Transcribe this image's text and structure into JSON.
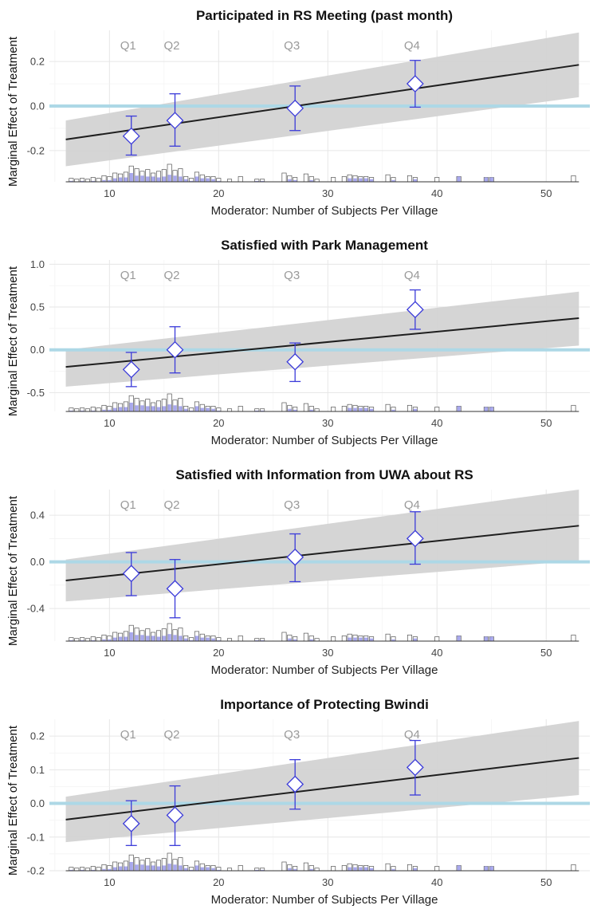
{
  "colors": {
    "band": "#d3d3d3",
    "line": "#1e1e1e",
    "zero_line": "#add8e6",
    "point": "#3b3bd9",
    "hist_treat": "#a8a8ee",
    "hist_outline": "#555555",
    "grid": "#ebebeb"
  },
  "chart_data": [
    {
      "type": "line",
      "title": "Participated in RS Meeting (past month)",
      "xlabel": "Moderator: Number of Subjects Per Village",
      "ylabel": "Marginal Effect of Treatment",
      "xlim": [
        6,
        53
      ],
      "xticks": [
        10,
        20,
        30,
        40,
        50
      ],
      "ylim": [
        -0.34,
        0.34
      ],
      "yticks": [
        -0.2,
        0.0,
        0.2
      ],
      "ytick_labels": [
        "-0.2",
        "0.0",
        "0.2"
      ],
      "grid": true,
      "zero_line": 0,
      "fit_line": {
        "x": [
          6,
          53
        ],
        "y": [
          -0.15,
          0.185
        ]
      },
      "ci_band": {
        "x": [
          6,
          53
        ],
        "lower": [
          -0.27,
          0.04
        ],
        "upper": [
          -0.065,
          0.33
        ]
      },
      "quartile_estimates": [
        {
          "label": "Q1",
          "x": 12,
          "y": -0.135,
          "lower": -0.22,
          "upper": -0.045
        },
        {
          "label": "Q2",
          "x": 16,
          "y": -0.065,
          "lower": -0.18,
          "upper": 0.055
        },
        {
          "label": "Q3",
          "x": 27,
          "y": -0.01,
          "lower": -0.11,
          "upper": 0.09
        },
        {
          "label": "Q4",
          "x": 38,
          "y": 0.1,
          "lower": -0.005,
          "upper": 0.205
        }
      ]
    },
    {
      "type": "line",
      "title": "Satisfied with Park Management",
      "xlabel": "Moderator: Number of Subjects Per Village",
      "ylabel": "Marginal Effect of Treatment",
      "xlim": [
        6,
        53
      ],
      "xticks": [
        10,
        20,
        30,
        40,
        50
      ],
      "ylim": [
        -0.72,
        1.05
      ],
      "yticks": [
        -0.5,
        0.0,
        0.5,
        1.0
      ],
      "ytick_labels": [
        "-0.5",
        "0.0",
        "0.5",
        "1.0"
      ],
      "grid": true,
      "zero_line": 0,
      "fit_line": {
        "x": [
          6,
          53
        ],
        "y": [
          -0.2,
          0.37
        ]
      },
      "ci_band": {
        "x": [
          6,
          53
        ],
        "lower": [
          -0.43,
          0.05
        ],
        "upper": [
          0.0,
          0.68
        ]
      },
      "quartile_estimates": [
        {
          "label": "Q1",
          "x": 12,
          "y": -0.23,
          "lower": -0.43,
          "upper": -0.03
        },
        {
          "label": "Q2",
          "x": 16,
          "y": 0.0,
          "lower": -0.27,
          "upper": 0.27
        },
        {
          "label": "Q3",
          "x": 27,
          "y": -0.14,
          "lower": -0.37,
          "upper": 0.08
        },
        {
          "label": "Q4",
          "x": 38,
          "y": 0.47,
          "lower": 0.24,
          "upper": 0.7
        }
      ]
    },
    {
      "type": "line",
      "title": "Satisfied with Information from UWA about RS",
      "xlabel": "Moderator: Number of Subjects Per Village",
      "ylabel": "Marginal Effect of Treatment",
      "xlim": [
        6,
        53
      ],
      "xticks": [
        10,
        20,
        30,
        40,
        50
      ],
      "ylim": [
        -0.68,
        0.62
      ],
      "yticks": [
        -0.4,
        0.0,
        0.4
      ],
      "ytick_labels": [
        "-0.4",
        "0.0",
        "0.4"
      ],
      "grid": true,
      "zero_line": 0,
      "fit_line": {
        "x": [
          6,
          53
        ],
        "y": [
          -0.16,
          0.31
        ]
      },
      "ci_band": {
        "x": [
          6,
          53
        ],
        "lower": [
          -0.34,
          0.01
        ],
        "upper": [
          0.02,
          0.62
        ]
      },
      "quartile_estimates": [
        {
          "label": "Q1",
          "x": 12,
          "y": -0.1,
          "lower": -0.29,
          "upper": 0.08
        },
        {
          "label": "Q2",
          "x": 16,
          "y": -0.23,
          "lower": -0.48,
          "upper": 0.02
        },
        {
          "label": "Q3",
          "x": 27,
          "y": 0.04,
          "lower": -0.17,
          "upper": 0.24
        },
        {
          "label": "Q4",
          "x": 38,
          "y": 0.2,
          "lower": -0.02,
          "upper": 0.43
        }
      ]
    },
    {
      "type": "line",
      "title": "Importance of Protecting Bwindi",
      "xlabel": "Moderator: Number of Subjects Per Village",
      "ylabel": "Marginal Effect of Treatment",
      "xlim": [
        6,
        53
      ],
      "xticks": [
        10,
        20,
        30,
        40,
        50
      ],
      "ylim": [
        -0.2,
        0.25
      ],
      "yticks": [
        -0.2,
        -0.1,
        0.0,
        0.1,
        0.2
      ],
      "ytick_labels": [
        "-0.2",
        "-0.1",
        "0.0",
        "0.1",
        "0.2"
      ],
      "grid": true,
      "zero_line": 0,
      "fit_line": {
        "x": [
          6,
          53
        ],
        "y": [
          -0.048,
          0.135
        ]
      },
      "ci_band": {
        "x": [
          6,
          53
        ],
        "lower": [
          -0.115,
          0.025
        ],
        "upper": [
          0.02,
          0.245
        ]
      },
      "quartile_estimates": [
        {
          "label": "Q1",
          "x": 12,
          "y": -0.06,
          "lower": -0.125,
          "upper": 0.008
        },
        {
          "label": "Q2",
          "x": 16,
          "y": -0.035,
          "lower": -0.125,
          "upper": 0.052
        },
        {
          "label": "Q3",
          "x": 27,
          "y": 0.057,
          "lower": -0.017,
          "upper": 0.13
        },
        {
          "label": "Q4",
          "x": 38,
          "y": 0.107,
          "lower": 0.025,
          "upper": 0.187
        }
      ]
    }
  ],
  "moderator_histogram": {
    "note": "same distribution drawn under each panel; heights relative (0-1)",
    "bins": [
      {
        "x": 6.5,
        "total": 0.2,
        "treated": 0.05
      },
      {
        "x": 7,
        "total": 0.15,
        "treated": 0.0
      },
      {
        "x": 7.5,
        "total": 0.2,
        "treated": 0.05
      },
      {
        "x": 8,
        "total": 0.15,
        "treated": 0.0
      },
      {
        "x": 8.5,
        "total": 0.25,
        "treated": 0.05
      },
      {
        "x": 9,
        "total": 0.2,
        "treated": 0.0
      },
      {
        "x": 9.5,
        "total": 0.35,
        "treated": 0.1
      },
      {
        "x": 10,
        "total": 0.3,
        "treated": 0.1
      },
      {
        "x": 10.5,
        "total": 0.5,
        "treated": 0.2
      },
      {
        "x": 11,
        "total": 0.45,
        "treated": 0.25
      },
      {
        "x": 11.5,
        "total": 0.55,
        "treated": 0.25
      },
      {
        "x": 12,
        "total": 0.9,
        "treated": 0.5
      },
      {
        "x": 12.5,
        "total": 0.75,
        "treated": 0.35
      },
      {
        "x": 13,
        "total": 0.6,
        "treated": 0.35
      },
      {
        "x": 13.5,
        "total": 0.7,
        "treated": 0.3
      },
      {
        "x": 14,
        "total": 0.5,
        "treated": 0.3
      },
      {
        "x": 14.5,
        "total": 0.6,
        "treated": 0.25
      },
      {
        "x": 15,
        "total": 0.7,
        "treated": 0.3
      },
      {
        "x": 15.5,
        "total": 1.0,
        "treated": 0.4
      },
      {
        "x": 16,
        "total": 0.65,
        "treated": 0.35
      },
      {
        "x": 16.5,
        "total": 0.75,
        "treated": 0.3
      },
      {
        "x": 17,
        "total": 0.3,
        "treated": 0.15
      },
      {
        "x": 17.5,
        "total": 0.2,
        "treated": 0.05
      },
      {
        "x": 18,
        "total": 0.55,
        "treated": 0.3
      },
      {
        "x": 18.5,
        "total": 0.4,
        "treated": 0.2
      },
      {
        "x": 19,
        "total": 0.3,
        "treated": 0.2
      },
      {
        "x": 19.5,
        "total": 0.3,
        "treated": 0.15
      },
      {
        "x": 20,
        "total": 0.2,
        "treated": 0.05
      },
      {
        "x": 21,
        "total": 0.15,
        "treated": 0.0
      },
      {
        "x": 22,
        "total": 0.3,
        "treated": 0.0
      },
      {
        "x": 23.5,
        "total": 0.15,
        "treated": 0.05
      },
      {
        "x": 24,
        "total": 0.15,
        "treated": 0.05
      },
      {
        "x": 26,
        "total": 0.5,
        "treated": 0.0
      },
      {
        "x": 26.5,
        "total": 0.35,
        "treated": 0.15
      },
      {
        "x": 27,
        "total": 0.25,
        "treated": 0.1
      },
      {
        "x": 28,
        "total": 0.45,
        "treated": 0.0
      },
      {
        "x": 28.5,
        "total": 0.3,
        "treated": 0.1
      },
      {
        "x": 29,
        "total": 0.15,
        "treated": 0.0
      },
      {
        "x": 30.5,
        "total": 0.25,
        "treated": 0.0
      },
      {
        "x": 31.5,
        "total": 0.3,
        "treated": 0.0
      },
      {
        "x": 32,
        "total": 0.4,
        "treated": 0.2
      },
      {
        "x": 32.5,
        "total": 0.35,
        "treated": 0.2
      },
      {
        "x": 33,
        "total": 0.3,
        "treated": 0.2
      },
      {
        "x": 33.5,
        "total": 0.3,
        "treated": 0.2
      },
      {
        "x": 34,
        "total": 0.25,
        "treated": 0.15
      },
      {
        "x": 35.5,
        "total": 0.4,
        "treated": 0.0
      },
      {
        "x": 36,
        "total": 0.25,
        "treated": 0.1
      },
      {
        "x": 37.5,
        "total": 0.35,
        "treated": 0.0
      },
      {
        "x": 38,
        "total": 0.25,
        "treated": 0.15
      },
      {
        "x": 40,
        "total": 0.25,
        "treated": 0.0
      },
      {
        "x": 42,
        "total": 0.3,
        "treated": 0.3
      },
      {
        "x": 44.5,
        "total": 0.25,
        "treated": 0.25
      },
      {
        "x": 45,
        "total": 0.25,
        "treated": 0.25
      },
      {
        "x": 52.5,
        "total": 0.35,
        "treated": 0.0
      }
    ]
  }
}
